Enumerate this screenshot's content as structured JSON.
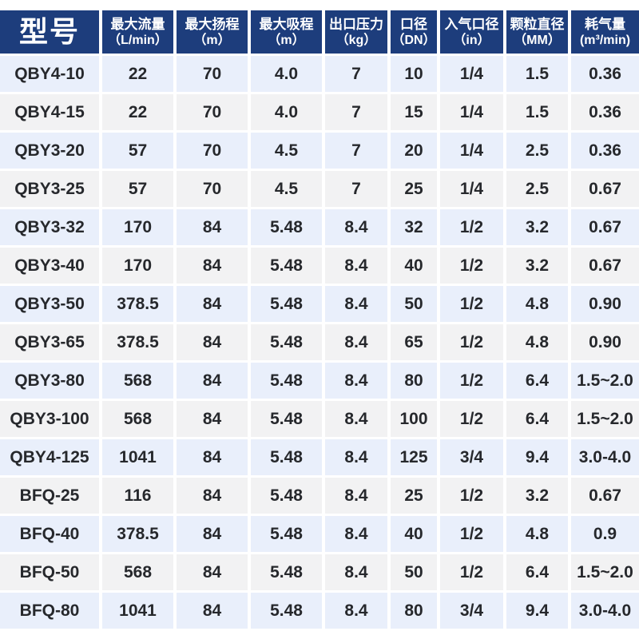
{
  "table": {
    "title_column_header": "型号",
    "columns": [
      {
        "title": "型号",
        "unit": ""
      },
      {
        "title": "最大流量",
        "unit": "（L/min）"
      },
      {
        "title": "最大扬程",
        "unit": "（m）"
      },
      {
        "title": "最大吸程",
        "unit": "（m）"
      },
      {
        "title": "出口压力",
        "unit": "（kg）"
      },
      {
        "title": "口径",
        "unit": "（DN）"
      },
      {
        "title": "入气口径",
        "unit": "（in）"
      },
      {
        "title": "颗粒直径",
        "unit": "（MM）"
      },
      {
        "title": "耗气量",
        "unit": "(m³/min)"
      }
    ],
    "rows": [
      [
        "QBY4-10",
        "22",
        "70",
        "4.0",
        "7",
        "10",
        "1/4",
        "1.5",
        "0.36"
      ],
      [
        "QBY4-15",
        "22",
        "70",
        "4.0",
        "7",
        "15",
        "1/4",
        "1.5",
        "0.36"
      ],
      [
        "QBY3-20",
        "57",
        "70",
        "4.5",
        "7",
        "20",
        "1/4",
        "2.5",
        "0.36"
      ],
      [
        "QBY3-25",
        "57",
        "70",
        "4.5",
        "7",
        "25",
        "1/4",
        "2.5",
        "0.67"
      ],
      [
        "QBY3-32",
        "170",
        "84",
        "5.48",
        "8.4",
        "32",
        "1/2",
        "3.2",
        "0.67"
      ],
      [
        "QBY3-40",
        "170",
        "84",
        "5.48",
        "8.4",
        "40",
        "1/2",
        "3.2",
        "0.67"
      ],
      [
        "QBY3-50",
        "378.5",
        "84",
        "5.48",
        "8.4",
        "50",
        "1/2",
        "4.8",
        "0.90"
      ],
      [
        "QBY3-65",
        "378.5",
        "84",
        "5.48",
        "8.4",
        "65",
        "1/2",
        "4.8",
        "0.90"
      ],
      [
        "QBY3-80",
        "568",
        "84",
        "5.48",
        "8.4",
        "80",
        "1/2",
        "6.4",
        "1.5~2.0"
      ],
      [
        "QBY3-100",
        "568",
        "84",
        "5.48",
        "8.4",
        "100",
        "1/2",
        "6.4",
        "1.5~2.0"
      ],
      [
        "QBY4-125",
        "1041",
        "84",
        "5.48",
        "8.4",
        "125",
        "3/4",
        "9.4",
        "3.0-4.0"
      ],
      [
        "BFQ-25",
        "116",
        "84",
        "5.48",
        "8.4",
        "25",
        "1/2",
        "3.2",
        "0.67"
      ],
      [
        "BFQ-40",
        "378.5",
        "84",
        "5.48",
        "8.4",
        "40",
        "1/2",
        "4.8",
        "0.9"
      ],
      [
        "BFQ-50",
        "568",
        "84",
        "5.48",
        "8.4",
        "50",
        "1/2",
        "6.4",
        "1.5~2.0"
      ],
      [
        "BFQ-80",
        "1041",
        "84",
        "5.48",
        "8.4",
        "80",
        "3/4",
        "9.4",
        "3.0-4.0"
      ]
    ],
    "colors": {
      "header_background": "#1d3d7c",
      "header_text": "#ffffff",
      "row_alt_blue": "#e9effb",
      "row_alt_gray": "#f2f2f3",
      "body_text": "#26282c",
      "separator": "#ffffff"
    }
  }
}
